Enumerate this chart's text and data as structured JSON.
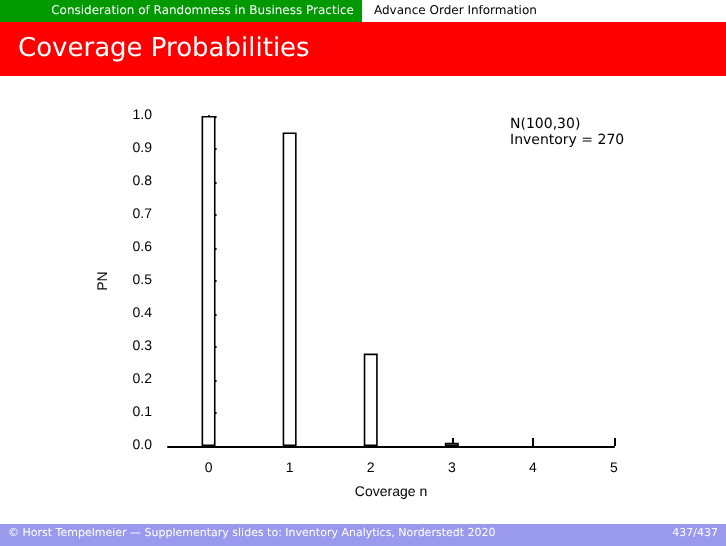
{
  "chart_data": {
    "type": "bar",
    "title": "Coverage Probabilities",
    "xlabel": "Coverage n",
    "ylabel": "PN",
    "x": [
      0,
      1,
      2,
      3
    ],
    "values": [
      1.0,
      0.95,
      0.28,
      0.01
    ],
    "color": "#ffffff",
    "xlim": [
      -0.5,
      5
    ],
    "xticks": [
      0,
      1,
      2,
      3,
      4,
      5
    ],
    "ylim": [
      0,
      1.0
    ],
    "yticks": [
      {
        "value": 0,
        "label": "0.0"
      },
      0.1,
      0.2,
      0.3,
      0.4,
      0.5,
      0.6,
      0.7,
      0.8,
      0.9,
      {
        "value": 1,
        "label": "1.0"
      }
    ],
    "annotations": [
      "Consideration of Randomness in Business Practice",
      "Advance Order Information",
      "N(100,30)",
      "Inventory = 270",
      "© Horst Tempelmeier — Supplementary slides to: Inventory Analytics, Norderstedt 2020",
      "437/437"
    ]
  }
}
